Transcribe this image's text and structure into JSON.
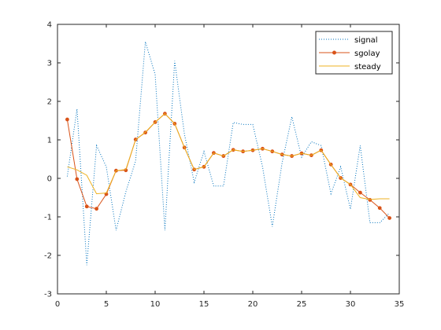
{
  "chart_data": {
    "type": "line",
    "title": "",
    "xlabel": "",
    "ylabel": "",
    "xlim": [
      0,
      35
    ],
    "ylim": [
      -3,
      4
    ],
    "xticks": [
      0,
      5,
      10,
      15,
      20,
      25,
      30,
      35
    ],
    "yticks": [
      -3,
      -2,
      -1,
      0,
      1,
      2,
      3,
      4
    ],
    "grid": false,
    "legend_position": "top-right",
    "x": [
      1,
      2,
      3,
      4,
      5,
      6,
      7,
      8,
      9,
      10,
      11,
      12,
      13,
      14,
      15,
      16,
      17,
      18,
      19,
      20,
      21,
      22,
      23,
      24,
      25,
      26,
      27,
      28,
      29,
      30,
      31,
      32,
      33,
      34
    ],
    "series": [
      {
        "name": "signal",
        "style": "dotted",
        "color": "#0072BD",
        "values": [
          0.05,
          1.8,
          -2.25,
          0.85,
          0.3,
          -1.35,
          -0.35,
          0.45,
          3.55,
          2.7,
          -1.35,
          3.05,
          1.15,
          -0.1,
          0.7,
          -0.2,
          -0.2,
          1.45,
          1.4,
          1.4,
          0.3,
          -1.25,
          0.4,
          1.6,
          0.55,
          0.95,
          0.85,
          -0.4,
          0.3,
          -0.8,
          0.85,
          -1.15,
          -1.15,
          -0.9
        ]
      },
      {
        "name": "sgolay",
        "style": "solid-markers",
        "color": "#D95319",
        "values": [
          1.53,
          -0.02,
          -0.73,
          -0.79,
          -0.41,
          0.2,
          0.21,
          1.01,
          1.19,
          1.46,
          1.68,
          1.42,
          0.8,
          0.23,
          0.3,
          0.66,
          0.58,
          0.74,
          0.7,
          0.73,
          0.77,
          0.7,
          0.62,
          0.58,
          0.65,
          0.6,
          0.73,
          0.36,
          0.01,
          -0.16,
          -0.37,
          -0.56,
          -0.77,
          -1.03
        ]
      },
      {
        "name": "steady",
        "style": "solid",
        "color": "#EDB120",
        "values": [
          0.3,
          0.22,
          0.08,
          -0.4,
          -0.38,
          0.2,
          0.23,
          1.0,
          1.2,
          1.46,
          1.68,
          1.42,
          0.8,
          0.23,
          0.3,
          0.66,
          0.58,
          0.74,
          0.7,
          0.73,
          0.77,
          0.7,
          0.62,
          0.58,
          0.65,
          0.6,
          0.73,
          0.36,
          0.01,
          -0.16,
          -0.5,
          -0.55,
          -0.53,
          -0.53
        ]
      }
    ]
  }
}
